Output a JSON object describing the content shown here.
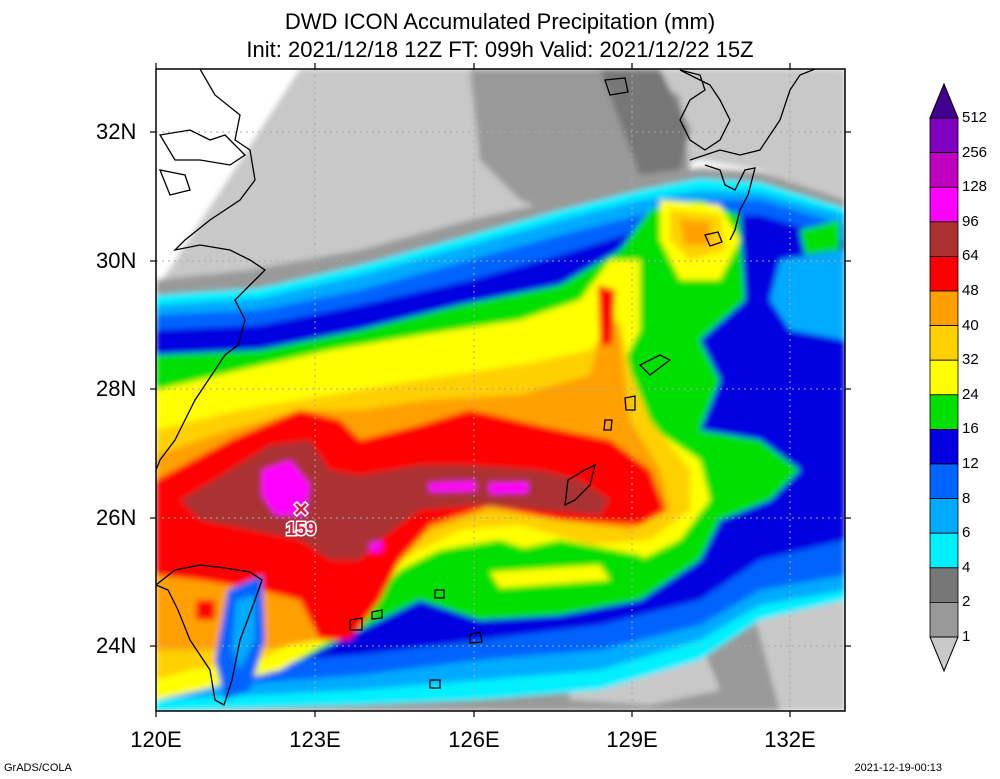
{
  "title": {
    "line1": "DWD ICON Accumulated Precipitation (mm)",
    "line2": "Init: 2021/12/18 12Z  FT: 099h  Valid: 2021/12/22 15Z"
  },
  "lat_labels": [
    "32N",
    "30N",
    "28N",
    "26N",
    "24N"
  ],
  "lon_labels": [
    "120E",
    "123E",
    "126E",
    "129E",
    "132E"
  ],
  "max_marker": {
    "symbol": "×",
    "value": "159",
    "color": "#d22040"
  },
  "legend": {
    "levels": [
      "1",
      "2",
      "4",
      "6",
      "8",
      "12",
      "16",
      "24",
      "32",
      "40",
      "48",
      "64",
      "96",
      "128",
      "256",
      "512"
    ],
    "colors": [
      "#c8c8c8",
      "#999999",
      "#777777",
      "#00f0ff",
      "#00aaff",
      "#0064ff",
      "#0000e0",
      "#00e000",
      "#ffff00",
      "#ffd000",
      "#ffa000",
      "#ff0000",
      "#aa3030",
      "#ff00ff",
      "#c000c0",
      "#8000c0",
      "#400090"
    ]
  },
  "footer": {
    "left": "GrADS/COLA",
    "right": "2021-12-19-00:13"
  }
}
